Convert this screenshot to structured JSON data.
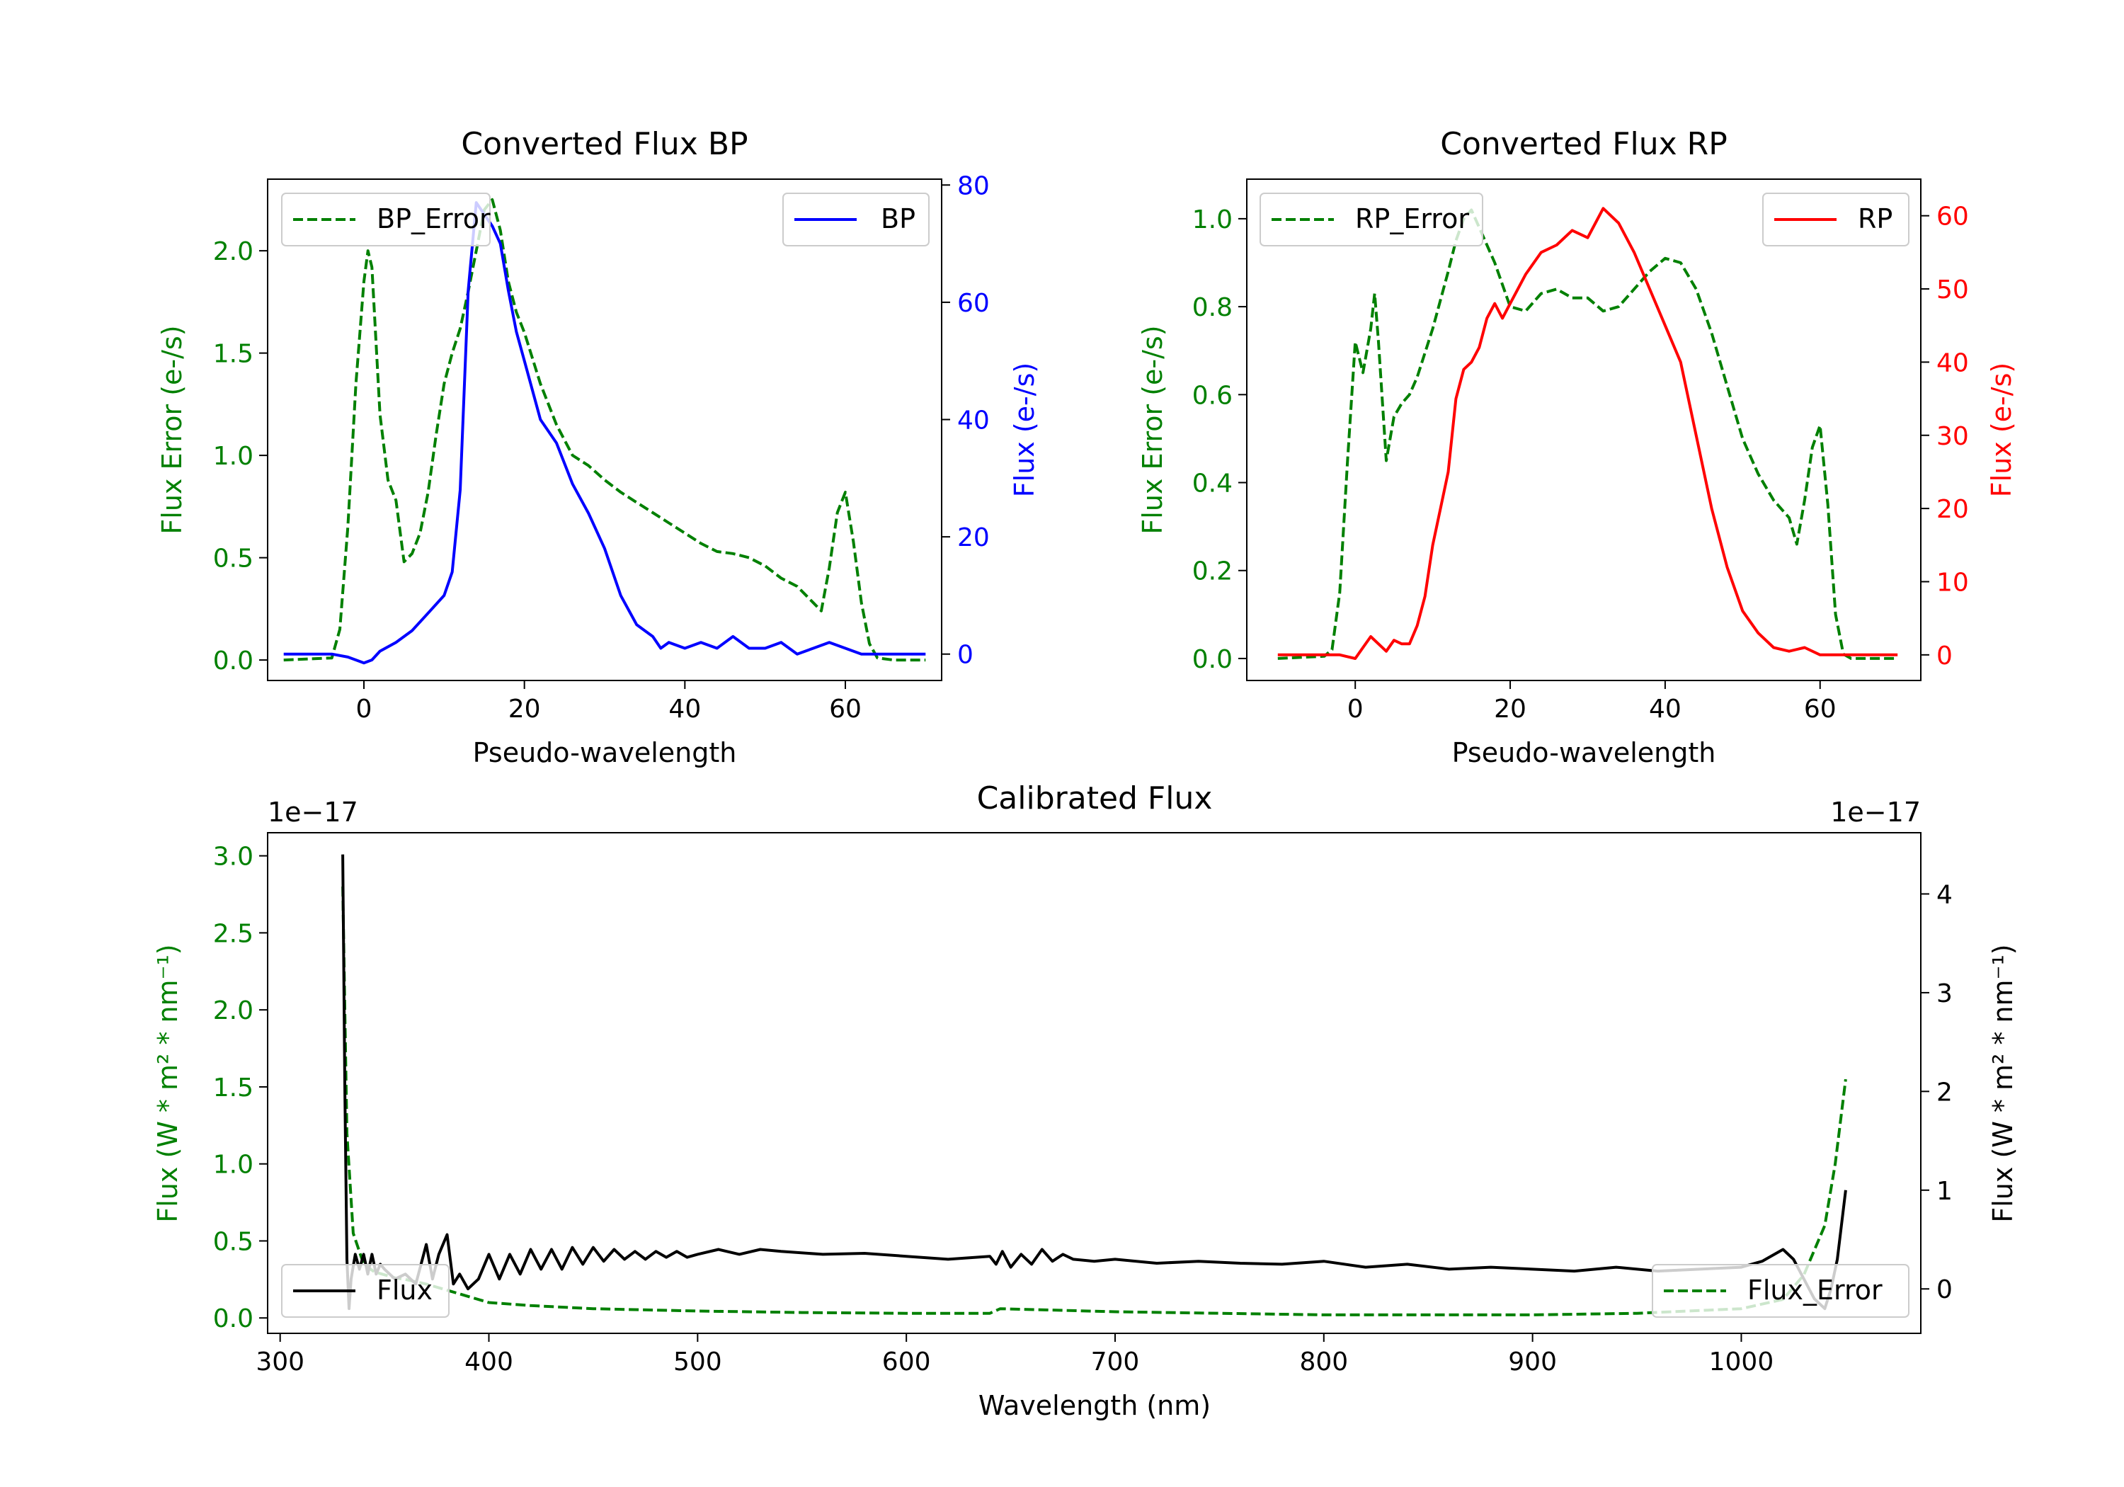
{
  "colors": {
    "bp": "#0000ff",
    "rp": "#ff0000",
    "error": "#008000",
    "calibrated": "#000000",
    "axes": "#000000",
    "legend_edge": "#cccccc"
  },
  "chart_data": [
    {
      "id": "bp",
      "type": "line",
      "title": "Converted Flux BP",
      "xlabel": "Pseudo-wavelength",
      "ylabel_left": "Flux Error (e-/s)",
      "ylabel_right": "Flux (e-/s)",
      "xlim": [
        -12,
        72
      ],
      "ylim_left": [
        -0.1,
        2.35
      ],
      "ylim_right": [
        -4.5,
        81
      ],
      "xticks": [
        0,
        20,
        40,
        60
      ],
      "xtick_labels": [
        "0",
        "20",
        "40",
        "60"
      ],
      "yticks_left": [
        0,
        0.5,
        1,
        1.5,
        2
      ],
      "ytick_labels_left": [
        "0.0",
        "0.5",
        "1.0",
        "1.5",
        "2.0"
      ],
      "yticks_right": [
        0,
        20,
        40,
        60,
        80
      ],
      "ytick_labels_right": [
        "0",
        "20",
        "40",
        "60",
        "80"
      ],
      "legend_left_label": "BP_Error",
      "legend_right_label": "BP",
      "series": [
        {
          "name": "BP_Error",
          "axis": "left",
          "style": "dashed",
          "color": "#008000",
          "x": [
            -10,
            -4,
            -3,
            -2,
            -1,
            0,
            0.5,
            1,
            2,
            3,
            4,
            5,
            6,
            7,
            8,
            9,
            10,
            11,
            12,
            13,
            14,
            15,
            16,
            17,
            18,
            19,
            20,
            22,
            24,
            26,
            28,
            30,
            32,
            34,
            36,
            38,
            40,
            42,
            44,
            46,
            48,
            50,
            52,
            54,
            56,
            57,
            58,
            59,
            60,
            61,
            62,
            63,
            64,
            66,
            70
          ],
          "y": [
            0,
            0.01,
            0.15,
            0.65,
            1.35,
            1.85,
            2.0,
            1.92,
            1.2,
            0.88,
            0.78,
            0.48,
            0.52,
            0.62,
            0.82,
            1.1,
            1.35,
            1.5,
            1.62,
            1.8,
            2.0,
            2.2,
            2.25,
            2.1,
            1.85,
            1.7,
            1.6,
            1.35,
            1.15,
            1.0,
            0.95,
            0.88,
            0.82,
            0.77,
            0.72,
            0.67,
            0.62,
            0.57,
            0.53,
            0.52,
            0.5,
            0.46,
            0.4,
            0.36,
            0.28,
            0.24,
            0.45,
            0.72,
            0.82,
            0.58,
            0.28,
            0.08,
            0.01,
            0.0,
            0.0
          ]
        },
        {
          "name": "BP",
          "axis": "right",
          "style": "solid",
          "color": "#0000ff",
          "x": [
            -10,
            -4,
            -2,
            0,
            1,
            2,
            4,
            6,
            8,
            10,
            11,
            12,
            13,
            14,
            15,
            16,
            17,
            18,
            19,
            20,
            22,
            24,
            26,
            28,
            30,
            32,
            34,
            36,
            37,
            38,
            40,
            42,
            44,
            46,
            48,
            50,
            52,
            54,
            56,
            58,
            60,
            62,
            64,
            70
          ],
          "y": [
            0,
            0,
            -0.5,
            -1.5,
            -1.0,
            0.5,
            2,
            4,
            7,
            10,
            14,
            28,
            62,
            77,
            75,
            73,
            70,
            62,
            55,
            50,
            40,
            36,
            29,
            24,
            18,
            10,
            5,
            3,
            1,
            2,
            1,
            2,
            1,
            3,
            1,
            1,
            2,
            0,
            1,
            2,
            1,
            0,
            0,
            0
          ]
        }
      ]
    },
    {
      "id": "rp",
      "type": "line",
      "title": "Converted Flux RP",
      "xlabel": "Pseudo-wavelength",
      "ylabel_left": "Flux Error (e-/s)",
      "ylabel_right": "Flux (e-/s)",
      "xlim": [
        -14,
        73
      ],
      "ylim_left": [
        -0.05,
        1.09
      ],
      "ylim_right": [
        -3.5,
        65
      ],
      "xticks": [
        0,
        20,
        40,
        60
      ],
      "xtick_labels": [
        "0",
        "20",
        "40",
        "60"
      ],
      "yticks_left": [
        0,
        0.2,
        0.4,
        0.6,
        0.8,
        1
      ],
      "ytick_labels_left": [
        "0.0",
        "0.2",
        "0.4",
        "0.6",
        "0.8",
        "1.0"
      ],
      "yticks_right": [
        0,
        10,
        20,
        30,
        40,
        50,
        60
      ],
      "ytick_labels_right": [
        "0",
        "10",
        "20",
        "30",
        "40",
        "50",
        "60"
      ],
      "legend_left_label": "RP_Error",
      "legend_right_label": "RP",
      "series": [
        {
          "name": "RP_Error",
          "axis": "right_placeholder",
          "style": "dashed",
          "color": "#008000",
          "x": [
            -10,
            -4,
            -3,
            -2,
            -1,
            0,
            1,
            2,
            2.5,
            3,
            4,
            5,
            6,
            7,
            8,
            10,
            12,
            13,
            14,
            15,
            16,
            18,
            20,
            22,
            24,
            26,
            28,
            30,
            32,
            34,
            36,
            38,
            40,
            42,
            44,
            46,
            48,
            50,
            52,
            54,
            56,
            57,
            58,
            59,
            60,
            61,
            62,
            63,
            64,
            66,
            70
          ],
          "y": [
            0,
            0.005,
            0.02,
            0.15,
            0.45,
            0.72,
            0.65,
            0.75,
            0.83,
            0.72,
            0.45,
            0.55,
            0.58,
            0.6,
            0.64,
            0.75,
            0.88,
            0.95,
            1.0,
            1.02,
            0.98,
            0.9,
            0.8,
            0.79,
            0.83,
            0.84,
            0.82,
            0.82,
            0.79,
            0.8,
            0.84,
            0.88,
            0.91,
            0.9,
            0.84,
            0.74,
            0.62,
            0.5,
            0.42,
            0.36,
            0.32,
            0.26,
            0.36,
            0.48,
            0.53,
            0.35,
            0.1,
            0.01,
            0.0,
            0.0,
            0.0
          ]
        },
        {
          "name": "RP",
          "axis": "right",
          "style": "solid",
          "color": "#ff0000",
          "x": [
            -10,
            -4,
            -2,
            0,
            1,
            2,
            3,
            4,
            5,
            6,
            7,
            8,
            9,
            10,
            11,
            12,
            13,
            14,
            15,
            16,
            17,
            18,
            19,
            20,
            22,
            24,
            26,
            28,
            30,
            32,
            34,
            36,
            38,
            40,
            42,
            44,
            46,
            48,
            50,
            52,
            54,
            56,
            58,
            60,
            62,
            64,
            70
          ],
          "y": [
            0,
            0,
            0,
            -0.5,
            1,
            2.5,
            1.5,
            0.5,
            2,
            1.5,
            1.5,
            4,
            8,
            15,
            20,
            25,
            35,
            39,
            40,
            42,
            46,
            48,
            46,
            48,
            52,
            55,
            56,
            58,
            57,
            61,
            59,
            55,
            50,
            45,
            40,
            30,
            20,
            12,
            6,
            3,
            1,
            0.5,
            1,
            0,
            0,
            0,
            0
          ]
        }
      ]
    },
    {
      "id": "calibrated",
      "type": "line",
      "title": "Calibrated Flux",
      "xlabel": "Wavelength (nm)",
      "ylabel_left": "Flux (W * m² * nm⁻¹)",
      "ylabel_right": "Flux (W * m² * nm⁻¹)",
      "offset_left": "1e−17",
      "offset_right": "1e−17",
      "xlim": [
        294,
        1086
      ],
      "ylim_left": [
        -0.1,
        3.15
      ],
      "ylim_right": [
        -0.45,
        4.62
      ],
      "xticks": [
        300,
        400,
        500,
        600,
        700,
        800,
        900,
        1000
      ],
      "xtick_labels": [
        "300",
        "400",
        "500",
        "600",
        "700",
        "800",
        "900",
        "1000"
      ],
      "yticks_left": [
        0,
        0.5,
        1,
        1.5,
        2,
        2.5,
        3
      ],
      "ytick_labels_left": [
        "0.0",
        "0.5",
        "1.0",
        "1.5",
        "2.0",
        "2.5",
        "3.0"
      ],
      "yticks_right": [
        0,
        1,
        2,
        3,
        4
      ],
      "ytick_labels_right": [
        "0",
        "1",
        "2",
        "3",
        "4"
      ],
      "legend_left_label": "Flux",
      "legend_right_label": "Flux_Error",
      "series": [
        {
          "name": "Flux_Error",
          "axis": "left",
          "style": "dashed",
          "color": "#008000",
          "x": [
            330,
            332,
            335,
            340,
            345,
            350,
            355,
            360,
            370,
            380,
            390,
            400,
            420,
            450,
            500,
            550,
            600,
            640,
            645,
            700,
            750,
            800,
            850,
            900,
            950,
            1000,
            1020,
            1030,
            1040,
            1045,
            1050
          ],
          "y": [
            2.8,
            1.2,
            0.55,
            0.35,
            0.3,
            0.28,
            0.26,
            0.25,
            0.22,
            0.18,
            0.14,
            0.1,
            0.08,
            0.06,
            0.045,
            0.035,
            0.03,
            0.03,
            0.06,
            0.04,
            0.03,
            0.02,
            0.02,
            0.02,
            0.03,
            0.06,
            0.12,
            0.28,
            0.6,
            1.0,
            1.55
          ]
        },
        {
          "name": "Flux",
          "axis": "right",
          "style": "solid",
          "color": "#000000",
          "x": [
            330,
            331,
            332,
            333,
            334,
            336,
            338,
            340,
            342,
            344,
            346,
            348,
            350,
            355,
            360,
            365,
            370,
            373,
            376,
            380,
            383,
            386,
            390,
            395,
            400,
            405,
            410,
            415,
            420,
            425,
            430,
            435,
            440,
            445,
            450,
            455,
            460,
            465,
            470,
            475,
            480,
            485,
            490,
            495,
            500,
            510,
            520,
            530,
            540,
            560,
            580,
            600,
            620,
            640,
            643,
            646,
            650,
            655,
            660,
            665,
            670,
            675,
            680,
            690,
            700,
            720,
            740,
            760,
            780,
            800,
            820,
            840,
            860,
            880,
            900,
            920,
            940,
            960,
            980,
            1000,
            1010,
            1020,
            1025,
            1030,
            1035,
            1040,
            1043,
            1046,
            1050
          ],
          "y": [
            4.4,
            2.0,
            0.3,
            -0.2,
            0.1,
            0.35,
            0.2,
            0.35,
            0.15,
            0.35,
            0.15,
            0.25,
            0.2,
            0.1,
            0.15,
            0.05,
            0.45,
            0.1,
            0.35,
            0.55,
            0.05,
            0.15,
            0.0,
            0.1,
            0.35,
            0.1,
            0.35,
            0.15,
            0.4,
            0.2,
            0.4,
            0.2,
            0.42,
            0.25,
            0.42,
            0.28,
            0.4,
            0.3,
            0.38,
            0.3,
            0.38,
            0.32,
            0.38,
            0.32,
            0.35,
            0.4,
            0.35,
            0.4,
            0.38,
            0.35,
            0.36,
            0.33,
            0.3,
            0.33,
            0.25,
            0.38,
            0.22,
            0.35,
            0.25,
            0.4,
            0.28,
            0.35,
            0.3,
            0.28,
            0.3,
            0.26,
            0.28,
            0.26,
            0.25,
            0.28,
            0.22,
            0.25,
            0.2,
            0.22,
            0.2,
            0.18,
            0.22,
            0.18,
            0.2,
            0.22,
            0.28,
            0.4,
            0.3,
            0.1,
            -0.1,
            -0.2,
            0.0,
            0.3,
            1.0
          ]
        }
      ]
    }
  ]
}
